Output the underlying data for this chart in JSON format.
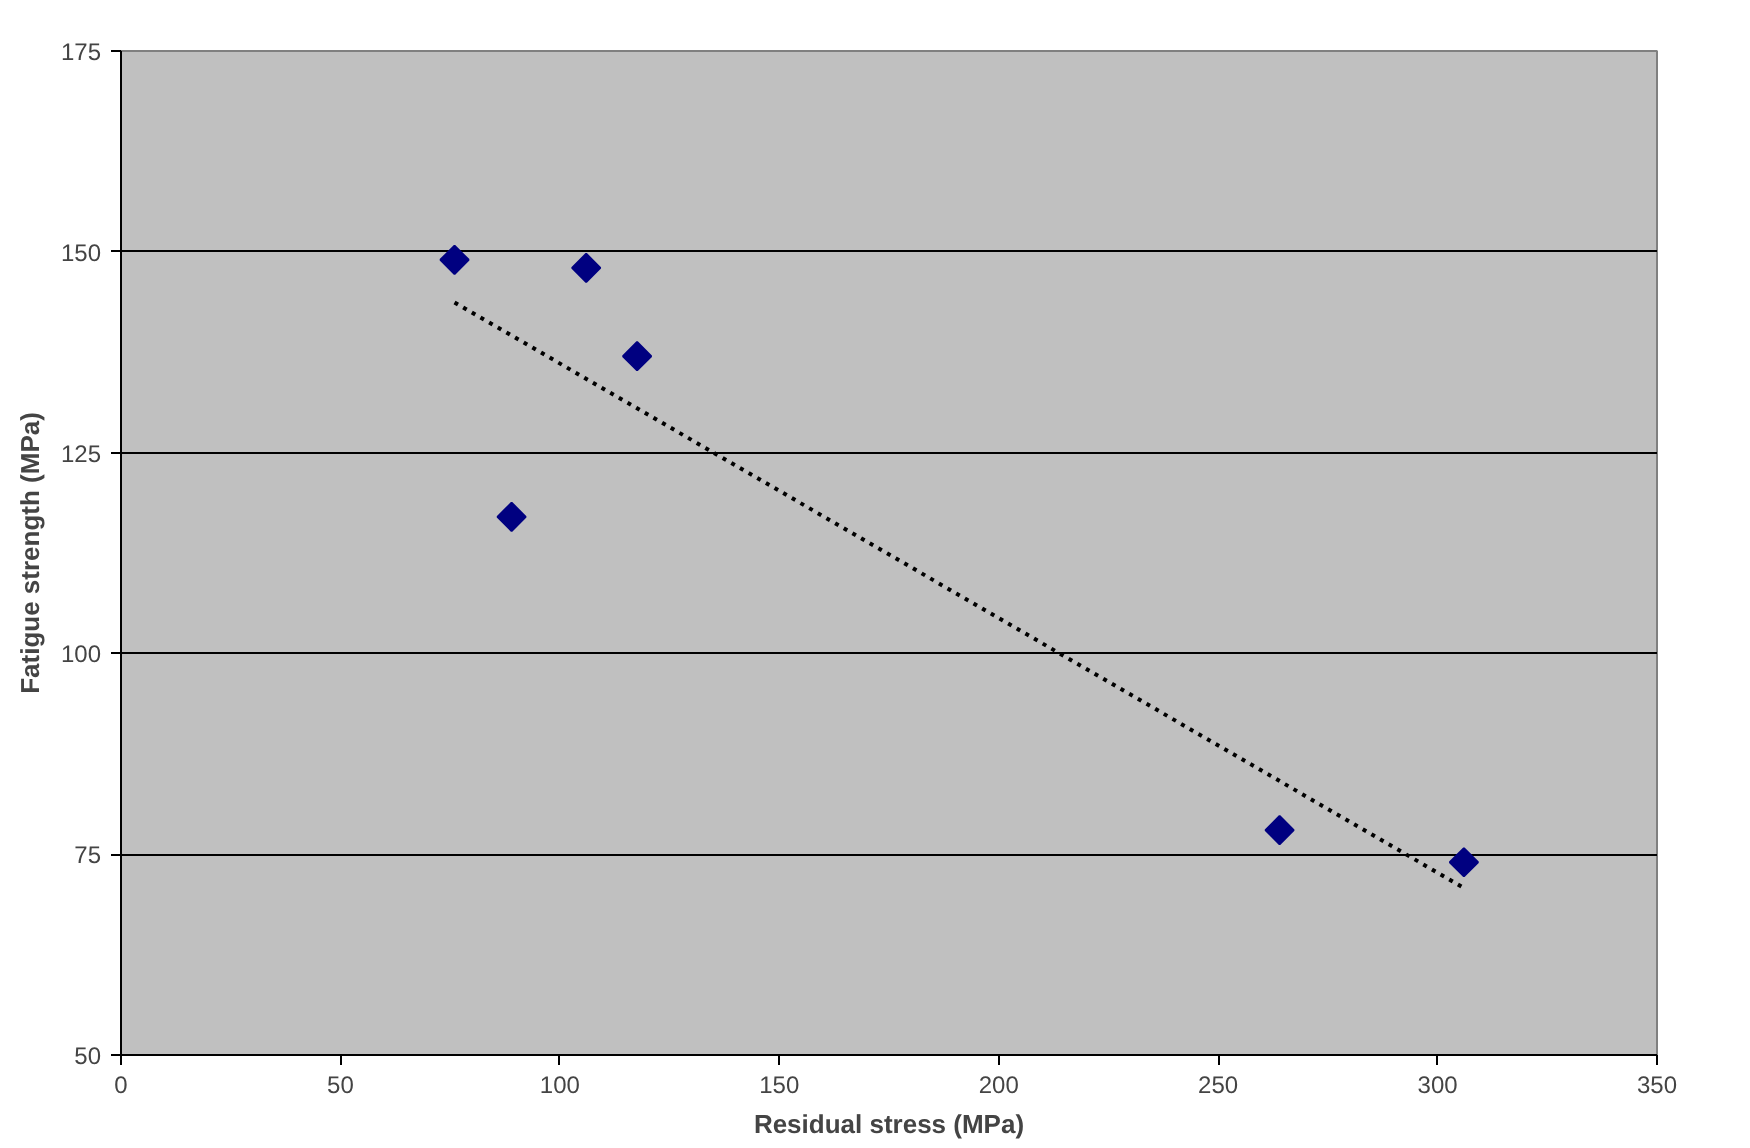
{
  "chart_data": {
    "type": "scatter",
    "xlabel": "Residual stress (MPa)",
    "ylabel": "Fatigue strength (MPa)",
    "xlim": [
      0,
      350
    ],
    "xticks": [
      0,
      50,
      100,
      150,
      200,
      250,
      300,
      350
    ],
    "ylim": [
      50,
      175
    ],
    "yticks": [
      50,
      75,
      100,
      125,
      150,
      175
    ],
    "grid": "y",
    "marker": "diamond",
    "series": [
      {
        "color": "#000080",
        "x": [
          76,
          89,
          106,
          117.6,
          264,
          306
        ],
        "values": [
          149,
          117,
          148,
          137,
          78,
          74
        ]
      },
      {
        "type": "line",
        "color": "#000000",
        "line_style": "dotted",
        "marker": "none",
        "x": [
          76,
          306
        ],
        "values": [
          143.7,
          70.8
        ]
      }
    ]
  }
}
